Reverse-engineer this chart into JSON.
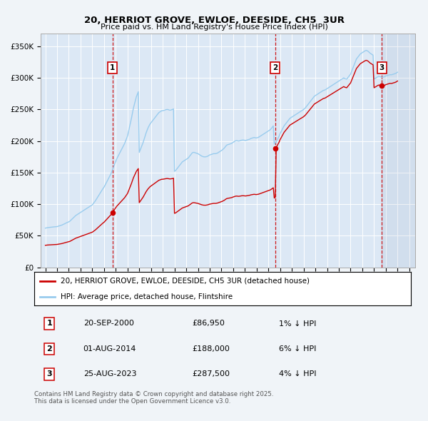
{
  "title": "20, HERRIOT GROVE, EWLOE, DEESIDE, CH5  3UR",
  "subtitle": "Price paid vs. HM Land Registry's House Price Index (HPI)",
  "ylim": [
    0,
    370000
  ],
  "yticks": [
    0,
    50000,
    100000,
    150000,
    200000,
    250000,
    300000,
    350000
  ],
  "ytick_labels": [
    "£0",
    "£50K",
    "£100K",
    "£150K",
    "£200K",
    "£250K",
    "£300K",
    "£350K"
  ],
  "xlim_start": 1994.6,
  "xlim_end": 2026.5,
  "bg_color": "#f0f4f8",
  "plot_bg": "#dce8f5",
  "grid_color": "#ffffff",
  "sale_dates": [
    2000.72,
    2014.583,
    2023.647
  ],
  "sale_prices": [
    86950,
    188000,
    287500
  ],
  "sale_labels": [
    "1",
    "2",
    "3"
  ],
  "sale_date_strs": [
    "20-SEP-2000",
    "01-AUG-2014",
    "25-AUG-2023"
  ],
  "sale_price_strs": [
    "£86,950",
    "£188,000",
    "£287,500"
  ],
  "sale_pct_strs": [
    "1% ↓ HPI",
    "6% ↓ HPI",
    "4% ↓ HPI"
  ],
  "line_color_red": "#cc0000",
  "line_color_blue": "#99ccee",
  "legend_label_red": "20, HERRIOT GROVE, EWLOE, DEESIDE, CH5 3UR (detached house)",
  "legend_label_blue": "HPI: Average price, detached house, Flintshire",
  "footer": "Contains HM Land Registry data © Crown copyright and database right 2025.\nThis data is licensed under the Open Government Licence v3.0.",
  "hpi_index": [
    62000,
    62500,
    62800,
    63000,
    63200,
    63400,
    63600,
    63800,
    64000,
    64100,
    64200,
    64300,
    64500,
    65000,
    65500,
    66000,
    66500,
    67000,
    67800,
    68500,
    69200,
    70000,
    70800,
    71500,
    72000,
    73000,
    74500,
    76000,
    77500,
    79000,
    80500,
    82000,
    83000,
    84000,
    85000,
    86000,
    87000,
    88000,
    89000,
    90000,
    91000,
    92000,
    93000,
    94000,
    95000,
    96000,
    97000,
    98000,
    99000,
    101000,
    103000,
    105000,
    107500,
    110000,
    112500,
    115000,
    117500,
    120000,
    122500,
    125000,
    127000,
    130000,
    133000,
    136000,
    139000,
    142000,
    145000,
    148000,
    152000,
    156000,
    160000,
    164000,
    168000,
    172000,
    175000,
    178000,
    181000,
    184000,
    187000,
    190000,
    193000,
    196000,
    200000,
    204000,
    208000,
    215000,
    222000,
    229000,
    236000,
    244000,
    252000,
    258000,
    264000,
    270000,
    274000,
    278000,
    182000,
    186000,
    190000,
    194000,
    198000,
    203000,
    208000,
    213000,
    217000,
    221000,
    224000,
    227000,
    229000,
    231000,
    233000,
    235000,
    237000,
    239000,
    241000,
    243000,
    245000,
    246000,
    247000,
    248000,
    248000,
    248500,
    249000,
    249500,
    250000,
    250000,
    249500,
    249000,
    249000,
    249500,
    250000,
    251000,
    152000,
    153000,
    155000,
    157000,
    159000,
    161000,
    163000,
    165000,
    167000,
    168000,
    169000,
    170000,
    171000,
    172000,
    173000,
    175000,
    177000,
    179000,
    181000,
    182000,
    182000,
    181500,
    181000,
    180500,
    180000,
    179000,
    178000,
    177000,
    176000,
    175500,
    175000,
    175000,
    175000,
    175500,
    176000,
    177000,
    178000,
    178500,
    179000,
    179500,
    180000,
    180000,
    180000,
    180500,
    181000,
    182000,
    183000,
    184000,
    185000,
    186000,
    187500,
    189000,
    191000,
    193000,
    194000,
    194500,
    195000,
    195500,
    196000,
    197000,
    198000,
    199000,
    200000,
    200500,
    200500,
    200000,
    200000,
    200500,
    201000,
    201500,
    201500,
    201500,
    201000,
    201000,
    201500,
    202000,
    202500,
    203000,
    204000,
    204500,
    205000,
    205500,
    205500,
    205000,
    205000,
    205500,
    206000,
    207000,
    208000,
    209000,
    210000,
    211000,
    212000,
    213000,
    214000,
    215000,
    216000,
    217000,
    218000,
    220000,
    222000,
    224000,
    195000,
    197000,
    199000,
    202000,
    205000,
    208000,
    212000,
    215000,
    218000,
    221000,
    224000,
    226000,
    228000,
    230000,
    232000,
    234000,
    236000,
    237000,
    238000,
    239000,
    240000,
    241000,
    242000,
    243000,
    244000,
    245000,
    246000,
    247000,
    248000,
    249000,
    250000,
    251500,
    253000,
    255000,
    257000,
    259000,
    261000,
    263000,
    265000,
    267000,
    269000,
    271000,
    272000,
    273000,
    274000,
    275000,
    276000,
    277000,
    278000,
    279000,
    280000,
    280500,
    281000,
    282000,
    283000,
    284000,
    285000,
    286000,
    287000,
    288000,
    289000,
    290000,
    291000,
    292000,
    293000,
    294000,
    295000,
    296000,
    297000,
    298000,
    299000,
    300000,
    299000,
    298500,
    298000,
    300000,
    302000,
    304000,
    306000,
    310000,
    314000,
    318000,
    322000,
    326000,
    330000,
    332000,
    334000,
    336000,
    338000,
    339000,
    340000,
    341000,
    342000,
    343000,
    343500,
    343000,
    342000,
    340500,
    339000,
    338000,
    337000,
    336000,
    298000,
    299000,
    300000,
    301000,
    302000,
    302500,
    302000,
    301500,
    301000,
    301000,
    301500,
    302000,
    303000,
    303500,
    304000,
    304500,
    305000,
    305000,
    305000,
    305500,
    306000,
    306500,
    307000,
    308000,
    309000
  ],
  "hpi_start_year": 1995.0,
  "hpi_step": 0.08333
}
